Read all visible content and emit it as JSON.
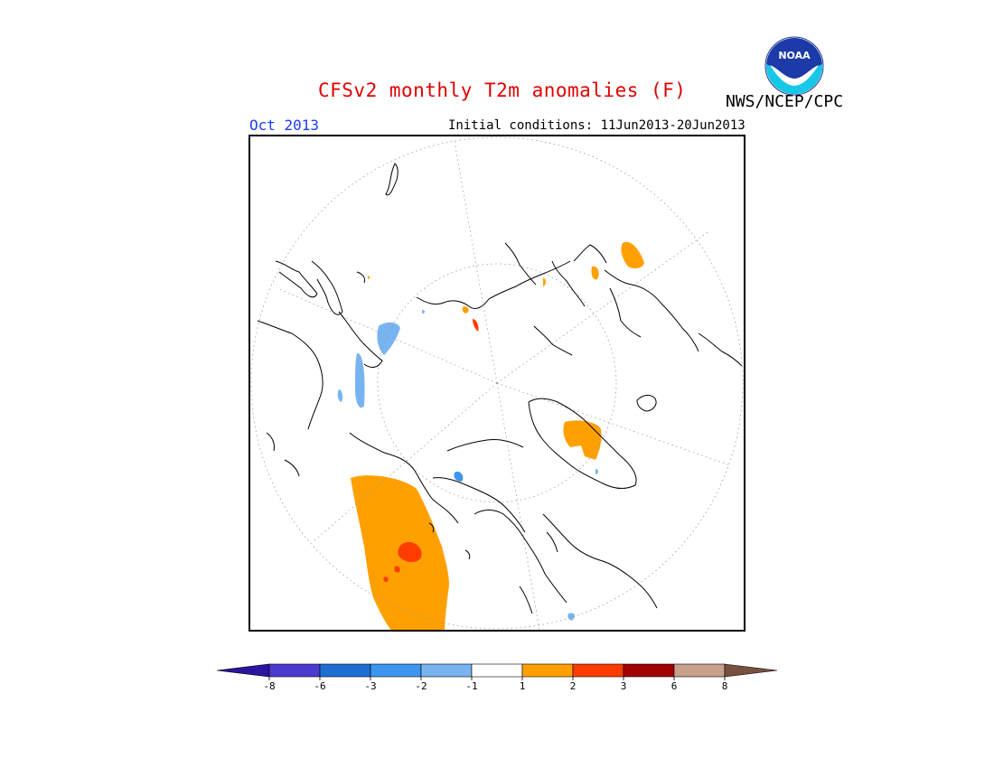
{
  "header": {
    "title": "CFSv2 monthly T2m anomalies (F)",
    "credit": "NWS/NCEP/CPC",
    "month": "Oct 2013",
    "initial_conditions": "Initial conditions: 11Jun2013-20Jun2013",
    "logo_text": "NOAA"
  },
  "colors": {
    "title": "#e00000",
    "month": "#1e3cff",
    "coast": "#000000",
    "grid": "#9a9a9a"
  },
  "colorbar": {
    "labels": [
      "-8",
      "-6",
      "-3",
      "-2",
      "-1",
      "1",
      "2",
      "3",
      "6",
      "8"
    ],
    "bins": [
      {
        "color": "#2d14a0"
      },
      {
        "color": "#4b3ccd"
      },
      {
        "color": "#1e6ed2"
      },
      {
        "color": "#3c96f0"
      },
      {
        "color": "#78b4f0"
      },
      {
        "color": "#ffffff"
      },
      {
        "color": "#ffa000"
      },
      {
        "color": "#ff3c00"
      },
      {
        "color": "#a00000"
      },
      {
        "color": "#c8a08c"
      },
      {
        "color": "#785040"
      }
    ]
  }
}
